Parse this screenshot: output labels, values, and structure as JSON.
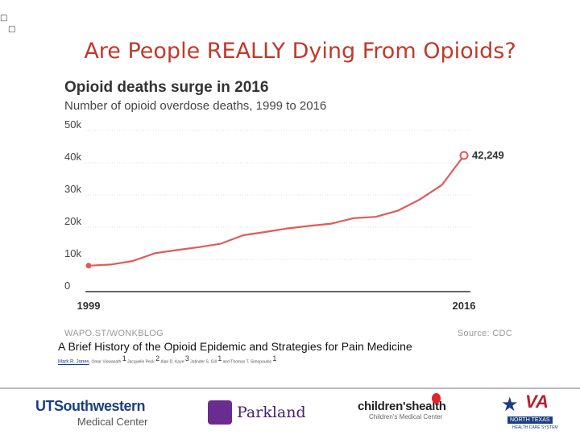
{
  "slide": {
    "title": "Are People REALLY Dying From Opioids?",
    "corner_glyph": "□"
  },
  "chart_data": {
    "type": "line",
    "title": "Opioid deaths surge in 2016",
    "subtitle": "Number of opioid overdose deaths, 1999 to 2016",
    "x": [
      1999,
      2000,
      2001,
      2002,
      2003,
      2004,
      2005,
      2006,
      2007,
      2008,
      2009,
      2010,
      2011,
      2012,
      2013,
      2014,
      2015,
      2016
    ],
    "series": [
      {
        "name": "Opioid overdose deaths",
        "values": [
          8050,
          8400,
          9500,
          11900,
          12900,
          13800,
          14900,
          17500,
          18500,
          19600,
          20400,
          21100,
          22800,
          23200,
          25100,
          28600,
          33100,
          42249
        ]
      }
    ],
    "yticks": [
      0,
      10000,
      20000,
      30000,
      40000,
      50000
    ],
    "ytick_labels": [
      "0",
      "10k",
      "20k",
      "30k",
      "40k",
      "50k"
    ],
    "xtick_labels": [
      "1999",
      "2016"
    ],
    "ylim": [
      0,
      50000
    ],
    "grid": true,
    "annotations": [
      {
        "x": 2016,
        "value": 42249,
        "label": "42,249"
      }
    ],
    "line_color": "#e05a5a",
    "watermark": "WAPO.ST/WONKBLOG",
    "source": "Source: CDC"
  },
  "citation": {
    "paper_title": "A Brief History of the Opioid Epidemic and Strategies for Pain Medicine",
    "lead_author": "Mark R. Jones",
    "authors": [
      {
        "name": "Omar Viswanath",
        "aff": "1"
      },
      {
        "name": "Jacquelin Peck",
        "aff": "2"
      },
      {
        "name": "Alan D. Kaye",
        "aff": "3"
      },
      {
        "name": "Jatinder S. Gill",
        "aff": "1"
      },
      {
        "name": "Thomas T. Simopoulos",
        "aff": "1"
      }
    ],
    "joiner": "and"
  },
  "logos": {
    "utsw_line1": "UTSouthwestern",
    "utsw_line2": "Medical Center",
    "parkland": "Parkland",
    "childrens_line1": "children'shealth",
    "childrens_line2": "Children's Medical Center",
    "va_mark": "VA",
    "va_line1": "NORTH TEXAS",
    "va_line2": "HEALTH CARE SYSTEM"
  },
  "colors": {
    "title": "#c0392b",
    "line": "#e05a5a",
    "utsw_blue": "#1b3f80",
    "parkland_purple": "#6a2c91"
  }
}
